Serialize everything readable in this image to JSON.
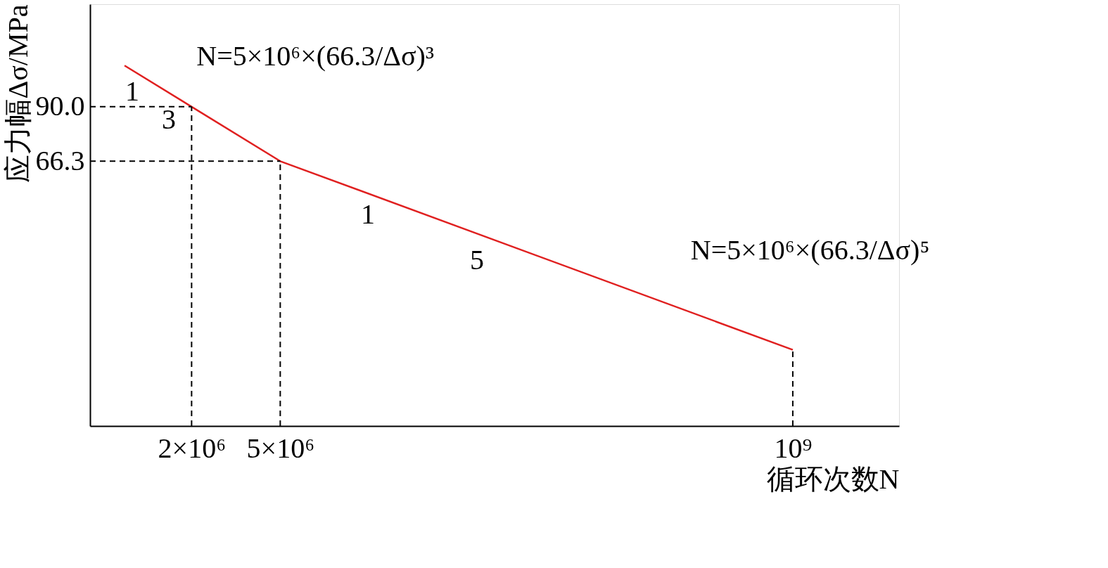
{
  "chart_data": {
    "type": "line",
    "xlabel": "循环次数N",
    "ylabel": "应力幅Δσ/MPa",
    "log": "xy",
    "grid": false,
    "marker": "none",
    "line_style": "solid",
    "x": [
      1000000,
      2000000,
      5000000,
      1000000000
    ],
    "series": [
      {
        "color": "#e02020",
        "values": [
          113.4,
          90.0,
          66.3,
          23.0
        ]
      }
    ],
    "xlim": [
      700000,
      3000000000
    ],
    "ylim": [
      15,
      160
    ],
    "xticks": [
      {
        "value": 2000000,
        "label": "2×10⁶"
      },
      {
        "value": 5000000,
        "label": "5×10⁶"
      },
      {
        "value": 1000000000,
        "label": "10⁹"
      }
    ],
    "yticks": [
      {
        "value": 90.0,
        "label": "90.0"
      },
      66.3
    ],
    "ref_lines": [
      {
        "axis": "y",
        "value": 90.0,
        "color": "#000000",
        "line_style": "dashed"
      },
      {
        "axis": "y",
        "value": 66.3,
        "color": "#000000",
        "line_style": "dashed"
      },
      {
        "axis": "x",
        "value": 2000000,
        "color": "#000000",
        "line_style": "dashed"
      },
      {
        "axis": "x",
        "value": 5000000,
        "color": "#000000",
        "line_style": "dashed"
      },
      {
        "axis": "x",
        "value": 1000000000,
        "color": "#000000",
        "line_style": "dashed"
      }
    ],
    "annotations": [
      {
        "text": "N=5×10⁶×(66.3/Δσ)³",
        "x": 3000000,
        "y": 77
      },
      {
        "text": "N=5×10⁶×(66.3/Δσ)⁵",
        "x": 500000000,
        "y": 26
      },
      "1",
      "3",
      "1",
      "5"
    ]
  }
}
